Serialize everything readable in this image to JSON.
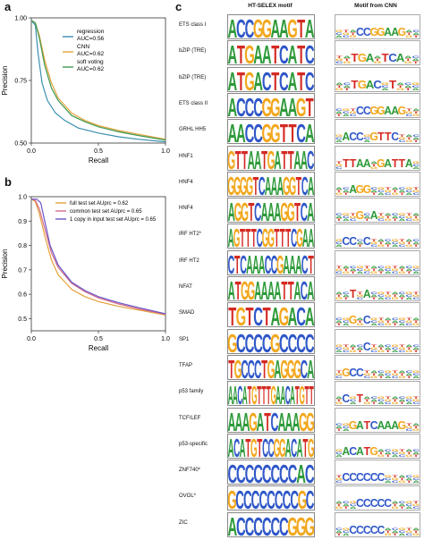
{
  "panels": {
    "a": "a",
    "b": "b",
    "c": "c"
  },
  "chart_data": [
    {
      "type": "line",
      "panel": "a",
      "xlabel": "Recall",
      "ylabel": "Precision",
      "xlim": [
        0.0,
        1.0
      ],
      "ylim": [
        0.5,
        1.0
      ],
      "xticks": [
        0.0,
        0.5,
        1.0
      ],
      "xtick_labels": [
        "0.0",
        "0.5",
        "1.0"
      ],
      "yticks": [
        0.5,
        0.75,
        1.0
      ],
      "ytick_labels": [
        "0.50",
        "0.75",
        "1.00"
      ],
      "legend_position": "top-right",
      "series": [
        {
          "name": "regression\nAUC=0.56",
          "color": "#3a8fb0",
          "x": [
            0.0,
            0.03,
            0.05,
            0.08,
            0.12,
            0.18,
            0.25,
            0.35,
            0.5,
            0.65,
            0.8,
            1.0
          ],
          "y": [
            0.99,
            0.97,
            0.86,
            0.74,
            0.67,
            0.62,
            0.59,
            0.56,
            0.54,
            0.525,
            0.515,
            0.505
          ]
        },
        {
          "name": "CNN\nAUC=0.62",
          "color": "#e4a23a",
          "x": [
            0.0,
            0.03,
            0.06,
            0.1,
            0.15,
            0.2,
            0.3,
            0.4,
            0.5,
            0.65,
            0.8,
            1.0
          ],
          "y": [
            0.99,
            0.98,
            0.93,
            0.83,
            0.74,
            0.68,
            0.62,
            0.59,
            0.57,
            0.55,
            0.535,
            0.515
          ]
        },
        {
          "name": "soft voting\nAUC=0.62",
          "color": "#3e9a4f",
          "x": [
            0.0,
            0.03,
            0.06,
            0.1,
            0.15,
            0.2,
            0.3,
            0.4,
            0.5,
            0.65,
            0.8,
            1.0
          ],
          "y": [
            0.99,
            0.98,
            0.92,
            0.81,
            0.72,
            0.67,
            0.61,
            0.585,
            0.565,
            0.545,
            0.53,
            0.512
          ]
        }
      ]
    },
    {
      "type": "line",
      "panel": "b",
      "xlabel": "Recall",
      "ylabel": "Precision",
      "xlim": [
        0.0,
        1.0
      ],
      "ylim": [
        0.45,
        1.0
      ],
      "xticks": [
        0.0,
        0.5,
        1.0
      ],
      "xtick_labels": [
        "0.0",
        "0.5",
        "1.0"
      ],
      "yticks": [
        0.5,
        0.6,
        0.7,
        0.8,
        0.9,
        1.0
      ],
      "ytick_labels": [
        "0.5",
        "0.6",
        "0.7",
        "0.8",
        "0.9",
        "1.0"
      ],
      "legend_position": "top-right",
      "series": [
        {
          "name": "full test set AUprc = 0.62",
          "color": "#e4a23a",
          "x": [
            0.0,
            0.03,
            0.06,
            0.1,
            0.15,
            0.2,
            0.3,
            0.4,
            0.5,
            0.65,
            0.8,
            1.0
          ],
          "y": [
            0.99,
            0.98,
            0.93,
            0.84,
            0.74,
            0.68,
            0.62,
            0.59,
            0.57,
            0.55,
            0.535,
            0.515
          ]
        },
        {
          "name": "common test set AUprc = 0.65",
          "color": "#d46a8a",
          "x": [
            0.0,
            0.03,
            0.06,
            0.1,
            0.15,
            0.2,
            0.3,
            0.4,
            0.5,
            0.65,
            0.8,
            1.0
          ],
          "y": [
            0.99,
            0.985,
            0.95,
            0.87,
            0.77,
            0.71,
            0.645,
            0.61,
            0.585,
            0.56,
            0.54,
            0.518
          ]
        },
        {
          "name": "1 copy in input test set AUprc = 0.65",
          "color": "#6a55c8",
          "x": [
            0.0,
            0.04,
            0.07,
            0.1,
            0.14,
            0.2,
            0.3,
            0.4,
            0.5,
            0.65,
            0.8,
            1.0
          ],
          "y": [
            0.99,
            0.99,
            0.975,
            0.9,
            0.8,
            0.72,
            0.65,
            0.615,
            0.59,
            0.565,
            0.545,
            0.52
          ]
        }
      ]
    }
  ],
  "motifs": {
    "header_selex": "HT-SELEX motif",
    "header_cnn": "Motif from CNN",
    "rows": [
      {
        "label": "ETS class I",
        "seq": "ACCGGAAGTA",
        "cnn": "...CCGGAAG.."
      },
      {
        "label": "bZIP (TRE)",
        "seq": "ATGAATCATC",
        "cnn": "..TGA.TCA.."
      },
      {
        "label": "bZIP (TRE)",
        "seq": "ATGACTCATC",
        "cnn": "..TGAC.T..."
      },
      {
        "label": "ETS class II",
        "seq": "ACCCGGAAGT",
        "cnn": "...CCGGAAG.."
      },
      {
        "label": "GRHL HH5",
        "seq": "AACCGGTTCA",
        "cnn": ".ACC.GTTC..."
      },
      {
        "label": "HNF1",
        "seq": "GTTAATGATTAAC",
        "cnn": ".TTAA.GATTA."
      },
      {
        "label": "HNF4",
        "seq": "GGGGTCAAAGGTCA",
        "cnn": "..AGG......."
      },
      {
        "label": "HNF4",
        "seq": "AGGTCAAAGGTCA",
        "cnn": "...G.A......"
      },
      {
        "label": "IRF HT2*",
        "seq": "AGTTTCGGTTTCGAA",
        "cnn": ".CC.C......."
      },
      {
        "label": "IRF HT2",
        "seq": "CTCAAACCGAAACT",
        "cnn": "............"
      },
      {
        "label": "NFAT",
        "seq": "ATGGAAAATTACA",
        "cnn": "..T.A......."
      },
      {
        "label": "SMAD",
        "seq": "TGTCTAGACA",
        "cnn": "..G.C......."
      },
      {
        "label": "SP1",
        "seq": "GCCCCGCCCC",
        "cnn": "....C......."
      },
      {
        "label": "TFAP",
        "seq": "TGCCCTGAGGGCA",
        "cnn": ".GCC........"
      },
      {
        "label": "p53 family",
        "seq": "AACATGTTTGAACATGTT",
        "cnn": ".C.T........"
      },
      {
        "label": "TCF/LEF",
        "seq": "AAAGATCAAAGG",
        "cnn": "..GATCAAAG.."
      },
      {
        "label": "p53-specific",
        "seq": "ACATGTCCGGACATG",
        "cnn": ".ACATG......"
      },
      {
        "label": "ZNF740*",
        "seq": "CCCCCCCCAC",
        "cnn": ".CCCCCC....."
      },
      {
        "label": "OVOL*",
        "seq": "GCCCCCCCCGC",
        "cnn": "...CCCCC...."
      },
      {
        "label": "ZIC",
        "seq": "ACCCCCCGGG",
        "cnn": "..CCCCC....."
      }
    ]
  }
}
